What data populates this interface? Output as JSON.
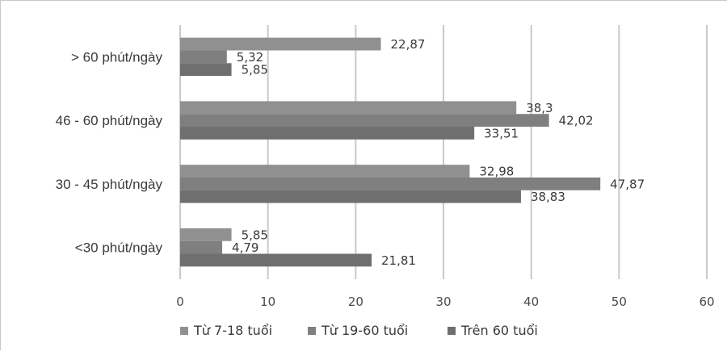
{
  "chart_data": {
    "type": "bar",
    "orientation": "horizontal",
    "title": "",
    "xlabel": "",
    "ylabel": "",
    "categories": [
      "<30 phút/ngày",
      "30 - 45 phút/ngày",
      "46 - 60 phút/ngày",
      "> 60 phút/ngày"
    ],
    "series": [
      {
        "name": "Từ 7-18 tuổi",
        "values": [
          5.85,
          32.98,
          38.3,
          22.87
        ],
        "labels": [
          "5,85",
          "32,98",
          "38,3",
          "22,87"
        ],
        "color": "#8f8f8f"
      },
      {
        "name": "Từ 19-60 tuổi",
        "values": [
          4.79,
          47.87,
          42.02,
          5.32
        ],
        "labels": [
          "4,79",
          "47,87",
          "42,02",
          "5,32"
        ],
        "color": "#7d7d7d"
      },
      {
        "name": "Trên 60 tuổi",
        "values": [
          21.81,
          38.83,
          33.51,
          5.85
        ],
        "labels": [
          "21,81",
          "38,83",
          "33,51",
          "5,85"
        ],
        "color": "#6e6e6e"
      }
    ],
    "xlim": [
      0,
      60
    ],
    "xticks": [
      "0",
      "10",
      "20",
      "30",
      "40",
      "50",
      "60"
    ],
    "grid": true,
    "legend_position": "bottom"
  }
}
